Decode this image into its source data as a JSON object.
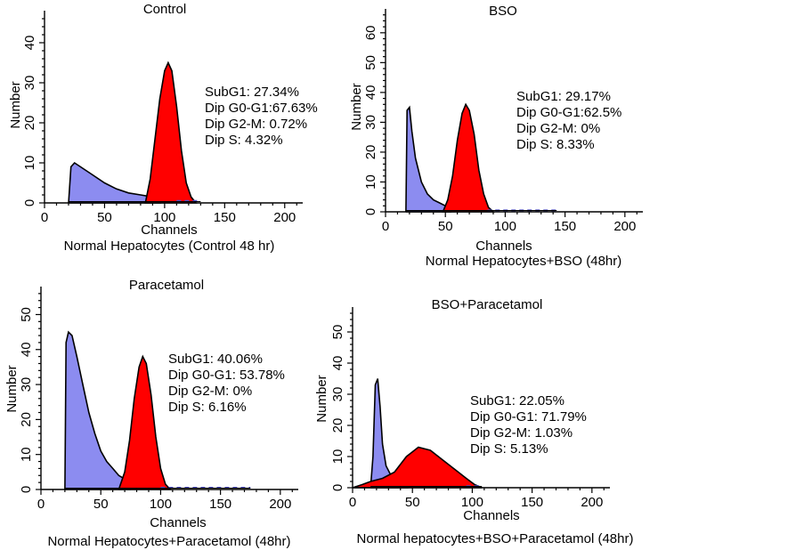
{
  "colors": {
    "subg1_fill": "#8c8cf0",
    "g0g1_fill": "#ff0000",
    "outline": "#000000",
    "dashed": "#5050c8"
  },
  "chart_data": [
    {
      "type": "histogram",
      "title": "Control",
      "xlabel": "Channels",
      "ylabel": "Number",
      "caption": "Normal Hepatocytes (Control 48 hr)",
      "xlim": [
        0,
        215
      ],
      "ylim": [
        0,
        48
      ],
      "xticks": [
        0,
        50,
        100,
        150,
        200
      ],
      "yticks": [
        0,
        10,
        20,
        30,
        40
      ],
      "stats": [
        "SubG1: 27.34%",
        "Dip G0-G1:67.63%",
        "Dip G2-M: 0.72%",
        "Dip S: 4.32%"
      ],
      "series": [
        {
          "name": "SubG1",
          "color": "subg1_fill",
          "x": [
            20,
            22,
            25,
            30,
            40,
            50,
            60,
            70,
            80,
            90,
            97
          ],
          "y": [
            0,
            9,
            10,
            9,
            7,
            5,
            3.5,
            2.5,
            2,
            1.5,
            0
          ]
        },
        {
          "name": "Dip G0-G1",
          "color": "g0g1_fill",
          "x": [
            84,
            88,
            92,
            96,
            100,
            103,
            106,
            110,
            114,
            118,
            122,
            126
          ],
          "y": [
            0,
            6,
            16,
            26,
            33,
            35,
            33,
            24,
            13,
            5,
            1.5,
            0
          ]
        },
        {
          "name": "Dip S",
          "color": "dashed",
          "x": [
            110,
            130
          ],
          "y": [
            0.5,
            0.5
          ]
        }
      ]
    },
    {
      "type": "histogram",
      "title": "BSO",
      "xlabel": "Channels",
      "ylabel": "Number",
      "caption": "Normal Hepatocytes+BSO (48hr)",
      "xlim": [
        0,
        215
      ],
      "ylim": [
        0,
        68
      ],
      "xticks": [
        0,
        50,
        100,
        150,
        200
      ],
      "yticks": [
        0,
        10,
        20,
        30,
        40,
        50,
        60
      ],
      "stats": [
        "SubG1: 29.17%",
        "Dip G0-G1:62.5%",
        "Dip G2-M: 0%",
        "Dip S: 8.33%"
      ],
      "series": [
        {
          "name": "SubG1",
          "color": "subg1_fill",
          "x": [
            17,
            18,
            20,
            22,
            25,
            30,
            35,
            40,
            45,
            50,
            55
          ],
          "y": [
            0,
            34,
            35,
            27,
            18,
            10,
            6,
            4,
            3,
            2,
            0
          ]
        },
        {
          "name": "Dip G0-G1",
          "color": "g0g1_fill",
          "x": [
            48,
            52,
            56,
            60,
            64,
            67,
            70,
            74,
            78,
            82,
            86,
            90
          ],
          "y": [
            0,
            4,
            12,
            24,
            33,
            36,
            34,
            26,
            14,
            6,
            1.5,
            0
          ]
        },
        {
          "name": "Dip S",
          "color": "dashed",
          "x": [
            85,
            143
          ],
          "y": [
            0.5,
            0.5
          ]
        }
      ]
    },
    {
      "type": "histogram",
      "title": "Paracetamol",
      "xlabel": "Channels",
      "ylabel": "Number",
      "caption": "Normal Hepatocytes+Paracetamol (48hr)",
      "xlim": [
        0,
        215
      ],
      "ylim": [
        0,
        58
      ],
      "xticks": [
        0,
        50,
        100,
        150,
        200
      ],
      "yticks": [
        0,
        10,
        20,
        30,
        40,
        50
      ],
      "stats": [
        "SubG1: 40.06%",
        "Dip G0-G1: 53.78%",
        "Dip G2-M: 0%",
        "Dip S: 6.16%"
      ],
      "series": [
        {
          "name": "SubG1",
          "color": "subg1_fill",
          "x": [
            20,
            21,
            23,
            26,
            30,
            35,
            40,
            45,
            50,
            55,
            60,
            65,
            70,
            75
          ],
          "y": [
            0,
            42,
            45,
            44,
            38,
            30,
            22,
            16,
            11,
            8,
            6,
            4,
            3,
            0
          ]
        },
        {
          "name": "Dip G0-G1",
          "color": "g0g1_fill",
          "x": [
            65,
            70,
            74,
            78,
            82,
            85,
            88,
            92,
            96,
            100,
            104,
            108
          ],
          "y": [
            0,
            5,
            14,
            26,
            35,
            38,
            36,
            27,
            15,
            6,
            1.5,
            0
          ]
        },
        {
          "name": "Dip S",
          "color": "dashed",
          "x": [
            100,
            175
          ],
          "y": [
            0.5,
            0.5
          ]
        }
      ]
    },
    {
      "type": "histogram",
      "title": "BSO+Paracetamol",
      "xlabel": "Channels",
      "ylabel": "Number",
      "caption": "Normal hepatocytes+BSO+Paracetamol (48hr)",
      "xlim": [
        0,
        215
      ],
      "ylim": [
        0,
        58
      ],
      "xticks": [
        0,
        50,
        100,
        150,
        200
      ],
      "yticks": [
        0,
        10,
        20,
        30,
        40,
        50
      ],
      "stats": [
        "SubG1: 22.05%",
        "Dip G0-G1: 71.79%",
        "Dip G2-M: 1.03%",
        "Dip S: 5.13%"
      ],
      "series": [
        {
          "name": "SubG1",
          "color": "subg1_fill",
          "x": [
            15,
            17,
            19,
            21,
            23,
            25,
            28,
            32,
            38,
            45
          ],
          "y": [
            0,
            10,
            33,
            35,
            26,
            14,
            7,
            4,
            2,
            0
          ]
        },
        {
          "name": "Dip G0-G1",
          "color": "g0g1_fill",
          "x": [
            0,
            8,
            15,
            25,
            35,
            45,
            55,
            65,
            75,
            85,
            95,
            102,
            108
          ],
          "y": [
            0,
            1,
            2,
            3,
            5,
            10,
            13,
            12,
            9,
            6,
            3,
            1,
            0
          ]
        },
        {
          "name": "Dip S",
          "color": "dashed",
          "x": [
            95,
            108
          ],
          "y": [
            0.5,
            0.5
          ]
        }
      ]
    }
  ]
}
